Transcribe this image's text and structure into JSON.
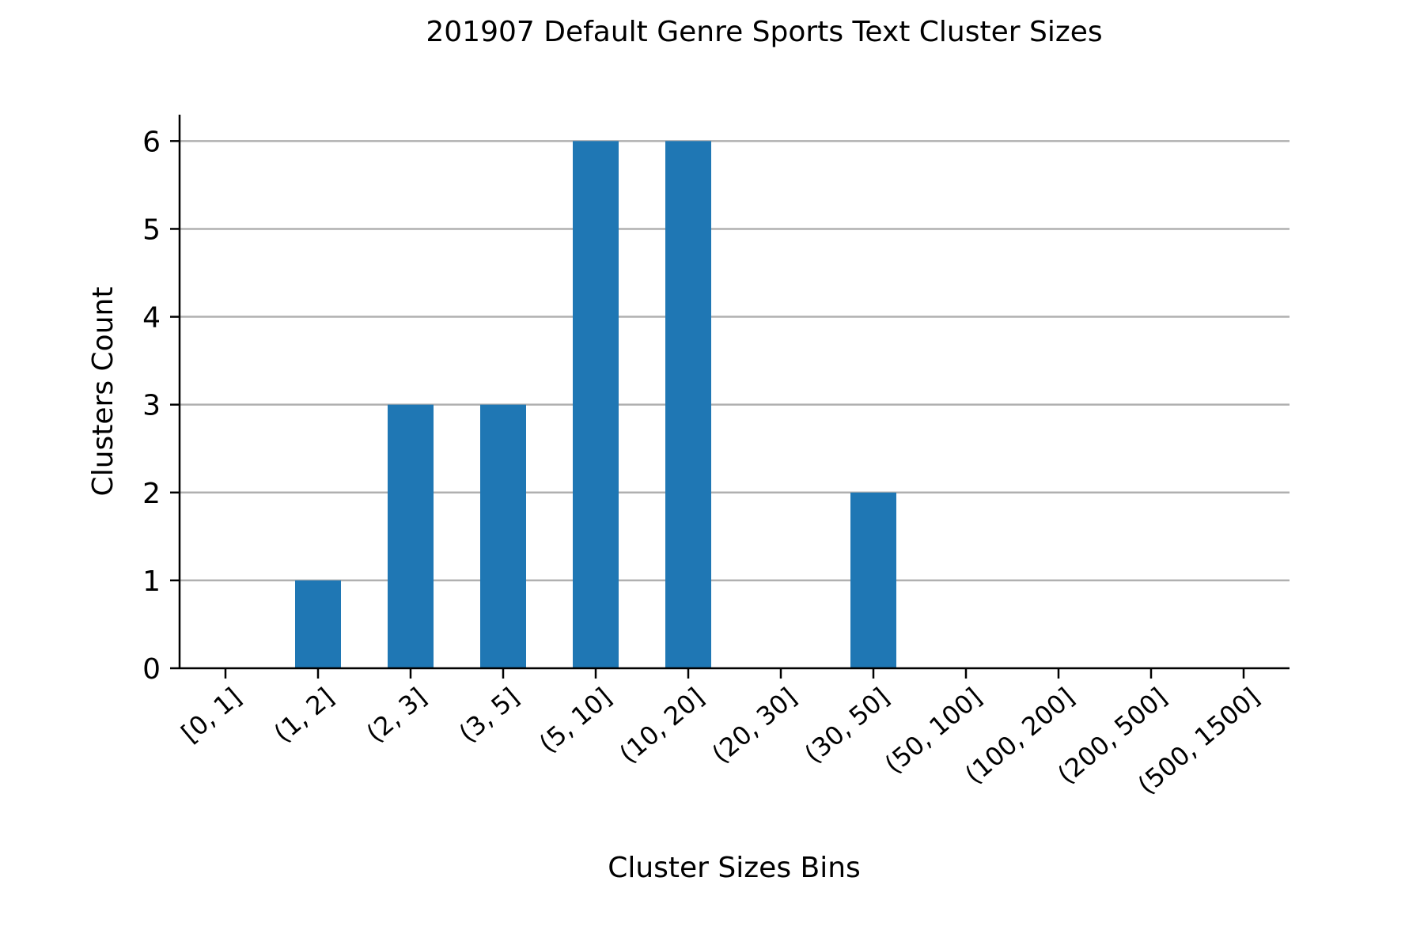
{
  "chart_data": {
    "type": "bar",
    "title": "201907 Default Genre Sports Text Cluster Sizes",
    "xlabel": "Cluster Sizes Bins",
    "ylabel": "Clusters Count",
    "categories": [
      "[0, 1]",
      "(1, 2]",
      "(2, 3]",
      "(3, 5]",
      "(5, 10]",
      "(10, 20]",
      "(20, 30]",
      "(30, 50]",
      "(50, 100]",
      "(100, 200]",
      "(200, 500]",
      "(500, 1500]"
    ],
    "values": [
      0,
      1,
      3,
      3,
      6,
      6,
      0,
      2,
      0,
      0,
      0,
      0
    ],
    "ylim": [
      0,
      6.3
    ],
    "yticks": [
      0,
      1,
      2,
      3,
      4,
      5,
      6
    ],
    "grid": "horizontal",
    "legend": "none",
    "colors": {
      "bar": "#1f77b4",
      "grid": "#b0b0b0",
      "axis": "#000000"
    }
  }
}
